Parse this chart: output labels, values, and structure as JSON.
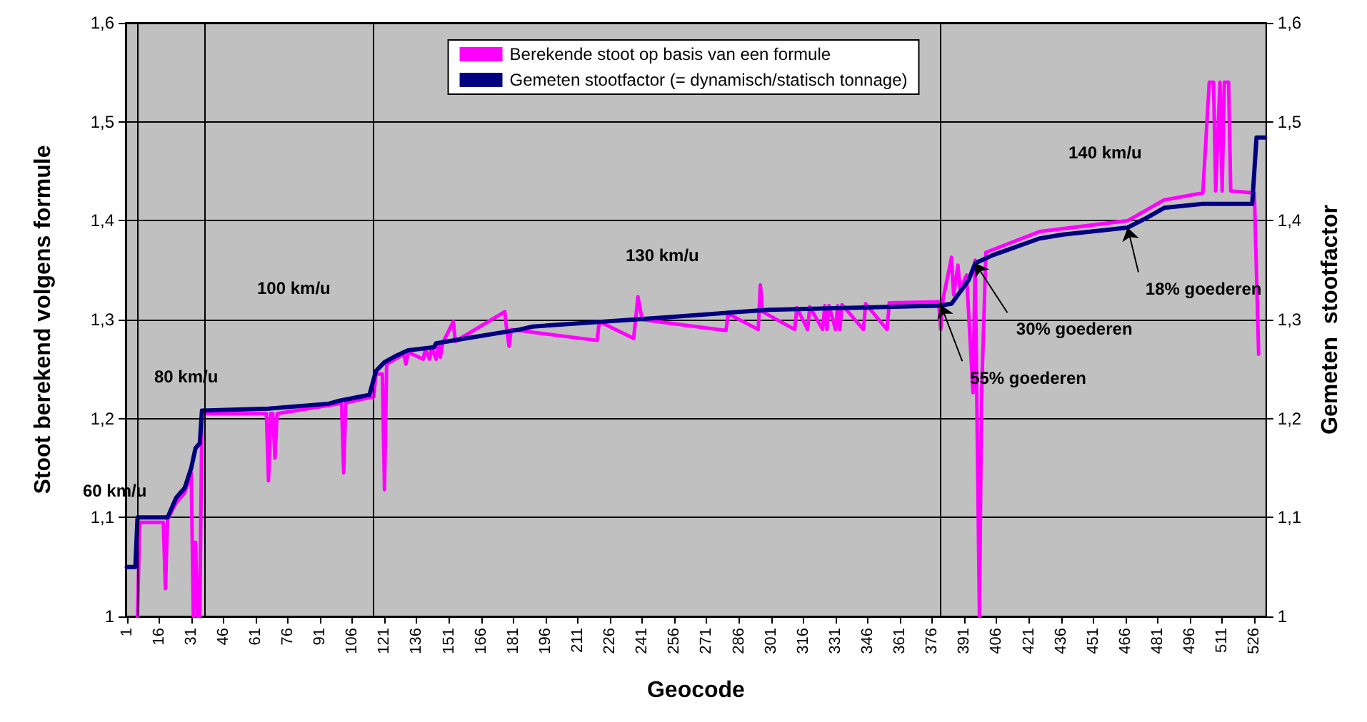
{
  "chart_data": {
    "type": "line",
    "xlabel": "Geocode",
    "ylabel": "Stoot berekend volgens formule",
    "y2label": "Gemeten  stootfactor",
    "xlim": [
      0.5,
      531.5
    ],
    "xticks": [
      1,
      16,
      31,
      46,
      61,
      76,
      91,
      106,
      121,
      136,
      151,
      166,
      181,
      196,
      211,
      226,
      241,
      256,
      271,
      286,
      301,
      316,
      331,
      346,
      361,
      376,
      391,
      406,
      421,
      436,
      451,
      466,
      481,
      496,
      511,
      526
    ],
    "ylim": [
      1,
      1.6
    ],
    "yticks": [
      1,
      {
        "value": 1.1,
        "label": "1,1"
      },
      {
        "value": 1.2,
        "label": "1,2"
      },
      {
        "value": 1.3,
        "label": "1,3"
      },
      {
        "value": 1.4,
        "label": "1,4"
      },
      {
        "value": 1.5,
        "label": "1,5"
      },
      {
        "value": 1.6,
        "label": "1,6"
      }
    ],
    "y2lim": [
      1,
      1.6
    ],
    "y2ticks": [
      1,
      {
        "value": 1.1,
        "label": "1,1"
      },
      {
        "value": 1.2,
        "label": "1,2"
      },
      {
        "value": 1.3,
        "label": "1,3"
      },
      {
        "value": 1.4,
        "label": "1,4"
      },
      {
        "value": 1.5,
        "label": "1,5"
      },
      {
        "value": 1.6,
        "label": "1,6"
      }
    ],
    "grid": "y",
    "legend": "top",
    "line_style": "solid",
    "series": [
      {
        "name": "Berekende stoot op basis van een formule",
        "color": "#ff00ff",
        "x": [
          6,
          7,
          18,
          19,
          20,
          24,
          28,
          31,
          32,
          33,
          34,
          35,
          36,
          66,
          67,
          68,
          69,
          70,
          71,
          100,
          101,
          102,
          103,
          116,
          117,
          120,
          121,
          122,
          130,
          131,
          132,
          139,
          140,
          142,
          143,
          145,
          146,
          147,
          148,
          153,
          154,
          177,
          178,
          179,
          180,
          220,
          221,
          237,
          239,
          241,
          280,
          281,
          295,
          296,
          297,
          312,
          313,
          318,
          319,
          325,
          326,
          327,
          328,
          331,
          332,
          333,
          334,
          344,
          345,
          355,
          356,
          379,
          380,
          381,
          385,
          386,
          388,
          389,
          392,
          395,
          396,
          398,
          399,
          401,
          426,
          467,
          484,
          502,
          505,
          507,
          508,
          510,
          511,
          512,
          514,
          515,
          526,
          528
        ],
        "values": [
          1.0,
          1.095,
          1.095,
          1.028,
          1.098,
          1.115,
          1.125,
          1.145,
          1.0,
          1.075,
          1.0,
          1.0,
          1.205,
          1.205,
          1.137,
          1.205,
          1.205,
          1.16,
          1.205,
          1.215,
          1.215,
          1.145,
          1.216,
          1.222,
          1.245,
          1.245,
          1.128,
          1.255,
          1.265,
          1.255,
          1.267,
          1.26,
          1.27,
          1.26,
          1.272,
          1.26,
          1.275,
          1.262,
          1.276,
          1.298,
          1.278,
          1.308,
          1.288,
          1.273,
          1.29,
          1.279,
          1.298,
          1.281,
          1.323,
          1.3,
          1.289,
          1.306,
          1.29,
          1.335,
          1.308,
          1.29,
          1.312,
          1.29,
          1.313,
          1.29,
          1.314,
          1.29,
          1.314,
          1.29,
          1.314,
          1.29,
          1.315,
          1.29,
          1.316,
          1.29,
          1.317,
          1.318,
          1.29,
          1.32,
          1.363,
          1.325,
          1.355,
          1.33,
          1.345,
          1.226,
          1.36,
          1.0,
          1.225,
          1.368,
          1.389,
          1.4,
          1.421,
          1.428,
          1.54,
          1.54,
          1.43,
          1.54,
          1.43,
          1.54,
          1.54,
          1.43,
          1.428,
          1.265
        ]
      },
      {
        "name": "Gemeten stootfactor (= dynamisch/statisch tonnage)",
        "color": "#000080",
        "axis": "y2",
        "x": [
          1,
          5,
          6,
          20,
          24,
          28,
          31,
          33,
          35,
          36,
          67,
          95,
          100,
          114,
          117,
          121,
          126,
          132,
          144,
          145,
          156,
          184,
          190,
          250,
          300,
          379,
          385,
          393,
          396,
          404,
          426,
          437,
          467,
          476,
          484,
          502,
          525,
          527,
          531
        ],
        "values": [
          1.05,
          1.05,
          1.1,
          1.1,
          1.12,
          1.13,
          1.15,
          1.17,
          1.175,
          1.208,
          1.21,
          1.215,
          1.218,
          1.224,
          1.248,
          1.257,
          1.263,
          1.269,
          1.272,
          1.276,
          1.28,
          1.29,
          1.293,
          1.302,
          1.31,
          1.314,
          1.316,
          1.34,
          1.357,
          1.365,
          1.382,
          1.386,
          1.393,
          1.403,
          1.413,
          1.417,
          1.417,
          1.484,
          1.484
        ]
      }
    ],
    "ref_lines": [
      {
        "axis": "x",
        "value": 6,
        "color": "#000000"
      },
      {
        "axis": "x",
        "value": 37,
        "color": "#000000"
      },
      {
        "axis": "x",
        "value": 116,
        "color": "#000000"
      },
      {
        "axis": "x",
        "value": 380,
        "color": "#000000"
      }
    ],
    "annotations": [
      "60 km/u",
      "80 km/u",
      "100 km/u",
      "130 km/u",
      "140 km/u",
      {
        "text": "55% goederen",
        "x": 380,
        "y": 1.315
      },
      {
        "text": "30% goederen",
        "x": 396,
        "y": 1.357
      },
      {
        "text": "18% goederen",
        "x": 467,
        "y": 1.393
      }
    ]
  }
}
